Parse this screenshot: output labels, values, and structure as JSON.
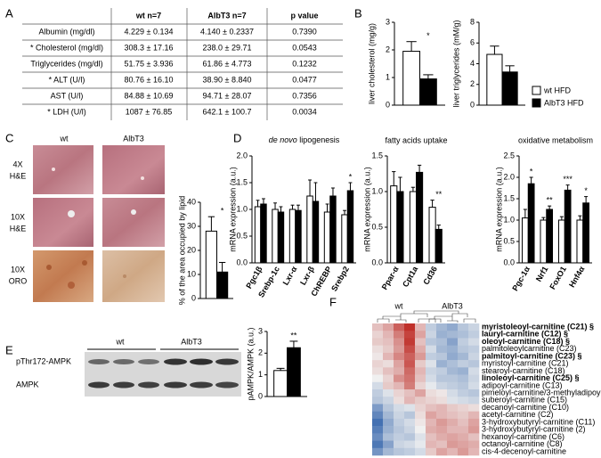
{
  "panel_labels": [
    "A",
    "B",
    "C",
    "D",
    "E",
    "F"
  ],
  "table": {
    "header": [
      "wt n=7",
      "AlbT3 n=7",
      "p value"
    ],
    "rows": [
      [
        "Albumin (mg/dl)",
        "4.229 ± 0.134",
        "4.140 ± 0.2337",
        "0.7390"
      ],
      [
        "* Cholesterol (mg/dl)",
        "308.3 ± 17.16",
        "238.0 ± 29.71",
        "0.0543"
      ],
      [
        "Triglycerides  (mg/dl)",
        "51.75 ± 3.936",
        "61.86 ± 4.773",
        "0.1232"
      ],
      [
        "* ALT (U/l)",
        "80.76 ± 16.10",
        "38.90 ± 8.840",
        "0.0477"
      ],
      [
        "AST (U/l)",
        "84.88 ± 10.69",
        "94.71 ± 28.07",
        "0.7356"
      ],
      [
        "* LDH (U/l)",
        "1087 ± 76.85",
        "642.1 ± 100.7",
        "0.0034"
      ]
    ]
  },
  "images_c": {
    "columns": [
      "wt",
      "AlbT3"
    ],
    "rows": [
      [
        "4X",
        "H&E"
      ],
      [
        "10X",
        "H&E"
      ],
      [
        "10X",
        "ORO"
      ]
    ]
  },
  "blot_e": {
    "groups": [
      "wt",
      "AlbT3"
    ],
    "bands": [
      "pThr172-AMPK",
      "AMPK"
    ]
  },
  "chart_data": [
    {
      "type": "bar",
      "ylabel": "liver cholesterol (mg/g)",
      "ylim": [
        0,
        3
      ],
      "yticks": [
        0,
        1,
        2,
        3
      ],
      "series": [
        {
          "color": "#ffffff",
          "values": [
            1.95
          ],
          "errors": [
            0.35
          ]
        },
        {
          "color": "#000000",
          "values": [
            0.95
          ],
          "errors": [
            0.15
          ]
        }
      ],
      "significance": [
        "*"
      ]
    },
    {
      "type": "bar",
      "ylabel": "liver triglycerides (mM/g)",
      "ylim": [
        0,
        8
      ],
      "yticks": [
        0,
        2,
        4,
        6,
        8
      ],
      "series": [
        {
          "name": "wt HFD",
          "color": "#ffffff",
          "values": [
            4.9
          ],
          "errors": [
            0.8
          ]
        },
        {
          "name": "AlbT3 HFD",
          "color": "#000000",
          "values": [
            3.2
          ],
          "errors": [
            0.6
          ]
        }
      ],
      "legend": "lower right"
    },
    {
      "type": "bar",
      "ylabel": "% of the area occupied by lipid",
      "ylim": [
        0,
        40
      ],
      "yticks": [
        0,
        10,
        20,
        30,
        40
      ],
      "series": [
        {
          "color": "#ffffff",
          "values": [
            28
          ],
          "errors": [
            6
          ]
        },
        {
          "color": "#000000",
          "values": [
            11
          ],
          "errors": [
            4
          ]
        }
      ],
      "significance": [
        "*"
      ]
    },
    {
      "type": "bar",
      "title_parts": [
        {
          "text": "de novo",
          "italic": true
        },
        {
          "text": " lipogenesis"
        }
      ],
      "ylabel": "mRNA expression (a.u.)",
      "categories": [
        "Pgc1β",
        "Srebp-1c",
        "Lxr-α",
        "Lxr-β",
        "ChREBP",
        "Srebp2"
      ],
      "ylim": [
        0,
        2
      ],
      "yticks": [
        {
          "value": 0,
          "label": "0.0"
        },
        {
          "value": 0.5,
          "label": "0.5"
        },
        {
          "value": 1,
          "label": "1.0"
        },
        {
          "value": 1.5,
          "label": "1.5"
        },
        {
          "value": 2,
          "label": "2.0"
        }
      ],
      "series": [
        {
          "color": "#ffffff",
          "values": [
            1.05,
            1.0,
            1.0,
            1.25,
            0.95,
            0.9
          ],
          "errors": [
            0.12,
            0.12,
            0.08,
            0.3,
            0.15,
            0.08
          ]
        },
        {
          "color": "#000000",
          "values": [
            1.1,
            0.95,
            0.98,
            1.15,
            1.25,
            1.35
          ],
          "errors": [
            0.1,
            0.1,
            0.1,
            0.35,
            0.15,
            0.15
          ]
        }
      ],
      "significance": [
        null,
        null,
        null,
        null,
        null,
        "*"
      ]
    },
    {
      "type": "bar",
      "title": "fatty acids uptake",
      "ylabel": "mRNA expression (a.u.)",
      "categories": [
        "Ppar-α",
        "Cpt1a",
        "Cd36"
      ],
      "ylim": [
        0,
        1.5
      ],
      "yticks": [
        {
          "value": 0,
          "label": "0.0"
        },
        {
          "value": 0.5,
          "label": "0.5"
        },
        {
          "value": 1,
          "label": "1.0"
        },
        {
          "value": 1.5,
          "label": "1.5"
        }
      ],
      "series": [
        {
          "color": "#ffffff",
          "values": [
            1.08,
            1.0,
            0.78
          ],
          "errors": [
            0.2,
            0.06,
            0.1
          ]
        },
        {
          "color": "#000000",
          "values": [
            1.0,
            1.27,
            0.47
          ],
          "errors": [
            0.2,
            0.1,
            0.06
          ]
        }
      ],
      "significance": [
        null,
        null,
        "**"
      ]
    },
    {
      "type": "bar",
      "title": "oxidative metabolism",
      "ylabel": "mRNA expression (a.u.)",
      "categories": [
        "Pgc-1α",
        "Nrf1",
        "FoxO1",
        "Hnf4α"
      ],
      "ylim": [
        0,
        2.5
      ],
      "yticks": [
        {
          "value": 0,
          "label": "0.0"
        },
        {
          "value": 0.5,
          "label": "0.5"
        },
        {
          "value": 1,
          "label": "1.0"
        },
        {
          "value": 1.5,
          "label": "1.5"
        },
        {
          "value": 2,
          "label": "2.0"
        },
        {
          "value": 2.5,
          "label": "2.5"
        }
      ],
      "series": [
        {
          "color": "#ffffff",
          "values": [
            1.05,
            1.0,
            1.0,
            1.0
          ],
          "errors": [
            0.2,
            0.06,
            0.08,
            0.1
          ]
        },
        {
          "color": "#000000",
          "values": [
            1.85,
            1.25,
            1.7,
            1.4
          ],
          "errors": [
            0.15,
            0.08,
            0.12,
            0.15
          ]
        }
      ],
      "significance": [
        "*",
        "**",
        "***",
        "*"
      ]
    },
    {
      "type": "bar",
      "ylabel": "pAMPK/AMPK (a.u.)",
      "ylim": [
        0,
        3
      ],
      "yticks": [
        0,
        1,
        2,
        3
      ],
      "series": [
        {
          "color": "#ffffff",
          "values": [
            1.2
          ],
          "errors": [
            0.1
          ]
        },
        {
          "color": "#000000",
          "values": [
            2.25
          ],
          "errors": [
            0.3
          ]
        }
      ],
      "significance": [
        "**"
      ]
    },
    {
      "type": "heatmap",
      "column_groups": [
        "wt",
        "AlbT3"
      ],
      "rows": [
        {
          "label": "myristoleoyl-carnitine (C21) §",
          "bold": true
        },
        {
          "label": "lauryl-carnitine (C12) §",
          "bold": true
        },
        {
          "label": "oleoyl-carnitine (C18) §",
          "bold": true
        },
        {
          "label": "palmitoleoylcarnitine (C23)",
          "bold": false
        },
        {
          "label": "palmitoyl-carnitine (C23) §",
          "bold": true
        },
        {
          "label": "myristoyl-carnitine (C21)",
          "bold": false
        },
        {
          "label": "stearoyl-carnitine (C18)",
          "bold": false
        },
        {
          "label": "linoleoyl-carnitine (C25) §",
          "bold": true
        },
        {
          "label": "adipoyl-carnitine (C13)",
          "bold": false
        },
        {
          "label": "pimeloyl-carnitine/3-methyladipoyl-carnitine",
          "bold": false
        },
        {
          "label": "suberoyl-carnitine (C15)",
          "bold": false
        },
        {
          "label": "decanoyl-carnitine (C10)",
          "bold": false
        },
        {
          "label": "acetyl-carnitine (C2)",
          "bold": false
        },
        {
          "label": "3-hydroxybutyryl-carnitine (C11)",
          "bold": false
        },
        {
          "label": "3-hydroxybutyryl-carnitine (2)",
          "bold": false
        },
        {
          "label": "hexanoyl-carnitine (C6)",
          "bold": false
        },
        {
          "label": "octanoyl-carnitine (C8)",
          "bold": false
        },
        {
          "label": "cis-4-decenoyl-carnitine",
          "bold": false
        }
      ],
      "values": [
        [
          0.5,
          0.8,
          1.5,
          2.0,
          0.6,
          -0.5,
          -0.8,
          -1.0,
          -0.6,
          -0.4
        ],
        [
          0.3,
          0.6,
          1.2,
          1.8,
          0.8,
          -0.4,
          -0.9,
          -0.8,
          -0.7,
          -0.5
        ],
        [
          0.4,
          0.5,
          1.0,
          1.9,
          0.5,
          -0.6,
          -0.7,
          -1.1,
          -0.5,
          -0.3
        ],
        [
          0.2,
          0.4,
          0.9,
          1.7,
          0.7,
          -0.3,
          -0.8,
          -0.9,
          -0.6,
          -0.5
        ],
        [
          0.1,
          0.6,
          1.1,
          1.5,
          0.9,
          -0.5,
          -0.6,
          -1.0,
          -0.8,
          -0.4
        ],
        [
          0.3,
          0.2,
          0.8,
          1.6,
          0.4,
          -0.2,
          -0.9,
          -0.7,
          -0.5,
          -0.6
        ],
        [
          0.2,
          0.5,
          0.7,
          1.4,
          0.6,
          -0.4,
          -0.5,
          -0.8,
          -0.9,
          -0.3
        ],
        [
          0.0,
          0.3,
          1.0,
          1.3,
          0.5,
          -0.3,
          -0.6,
          -0.6,
          -0.7,
          -0.4
        ],
        [
          -0.3,
          0.4,
          0.6,
          1.2,
          0.3,
          -0.1,
          -0.4,
          -0.5,
          -0.6,
          -0.3
        ],
        [
          -0.5,
          -0.2,
          0.3,
          0.5,
          0.8,
          0.2,
          0.1,
          -0.3,
          -0.5,
          -0.6
        ],
        [
          -0.6,
          -0.4,
          0.2,
          0.6,
          0.4,
          0.3,
          0.2,
          -0.2,
          -0.3,
          -0.4
        ],
        [
          -1.2,
          -0.6,
          -0.3,
          -0.2,
          0.3,
          0.5,
          0.6,
          0.4,
          0.3,
          0.2
        ],
        [
          -1.5,
          -0.8,
          -0.4,
          -0.6,
          0.2,
          0.8,
          0.6,
          0.5,
          0.4,
          0.6
        ],
        [
          -1.8,
          -1.0,
          -0.5,
          -0.3,
          0.1,
          0.6,
          0.9,
          0.7,
          0.5,
          0.8
        ],
        [
          -1.6,
          -0.9,
          -0.6,
          -0.4,
          0.0,
          0.7,
          0.8,
          0.6,
          0.6,
          0.9
        ],
        [
          -1.4,
          -0.7,
          -0.5,
          -0.6,
          -0.2,
          0.5,
          0.7,
          0.8,
          0.7,
          0.5
        ],
        [
          -1.7,
          -1.1,
          -0.4,
          -0.3,
          -0.1,
          0.6,
          0.5,
          0.9,
          0.8,
          0.7
        ],
        [
          -1.3,
          -0.8,
          -0.6,
          -0.5,
          -0.3,
          0.4,
          0.8,
          0.6,
          0.9,
          0.6
        ]
      ]
    }
  ]
}
